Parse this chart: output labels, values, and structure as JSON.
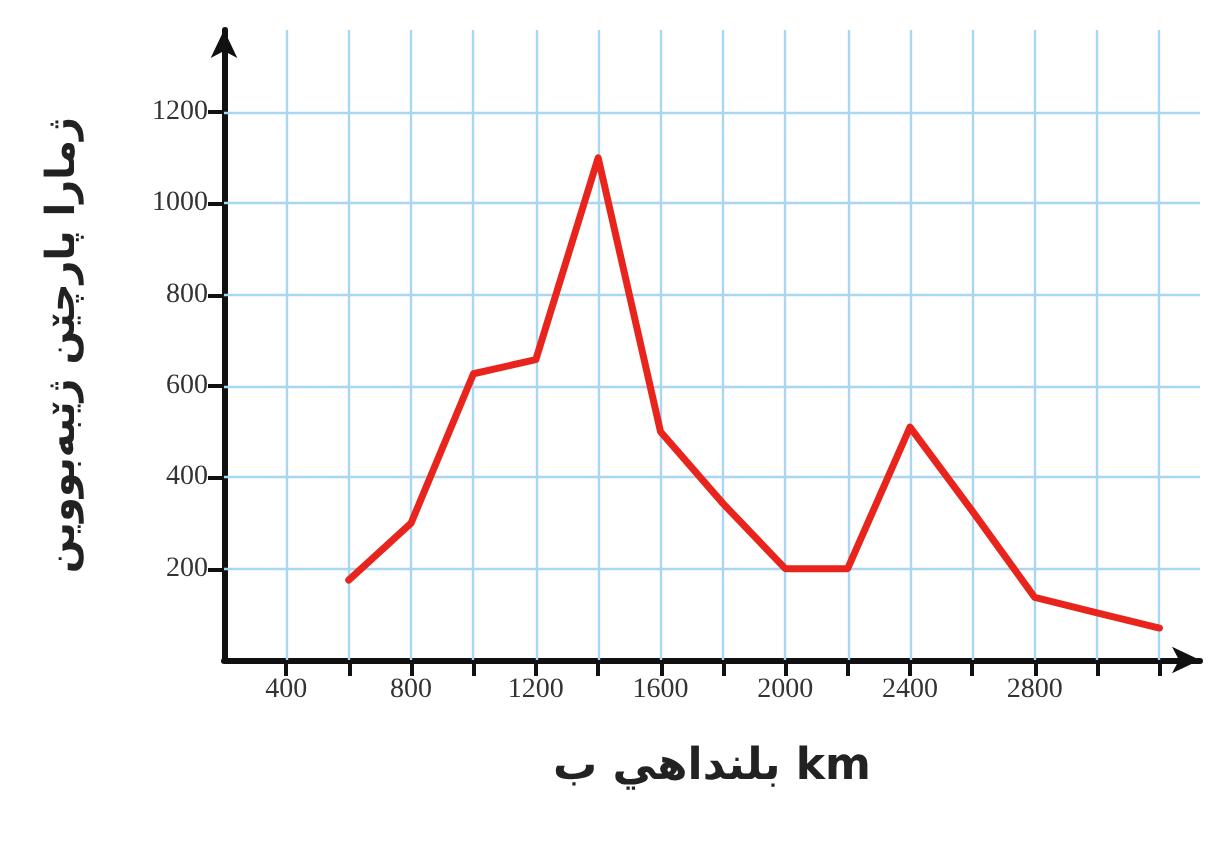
{
  "chart_data": {
    "type": "line",
    "xlabel": "بلنداهي ب km",
    "ylabel": "ژمارا پارچێن ژێبەبووین",
    "x": [
      600,
      800,
      1000,
      1200,
      1400,
      1600,
      1800,
      2000,
      2200,
      2400,
      2600,
      2800,
      3000,
      3200
    ],
    "series": [
      {
        "color": "#e8241c",
        "values": [
          175,
          300,
          627,
          658,
          1100,
          500,
          343,
          200,
          200,
          510,
          326,
          137,
          103,
          70
        ]
      }
    ],
    "xlim": [
      200,
      3330
    ],
    "ylim": [
      0,
      1380
    ],
    "xticks": [
      400,
      {
        "value": 600,
        "label": null
      },
      800,
      {
        "value": 1000,
        "label": null
      },
      1200,
      {
        "value": 1400,
        "label": null
      },
      1600,
      {
        "value": 1800,
        "label": null
      },
      2000,
      {
        "value": 2200,
        "label": null
      },
      2400,
      {
        "value": 2600,
        "label": null
      },
      2800,
      {
        "value": 3000,
        "label": null
      },
      {
        "value": 3200,
        "label": null
      }
    ],
    "yticks": [
      200,
      400,
      600,
      800,
      1000,
      1200
    ],
    "grid": true,
    "marker": "none",
    "line_style": "solid"
  }
}
